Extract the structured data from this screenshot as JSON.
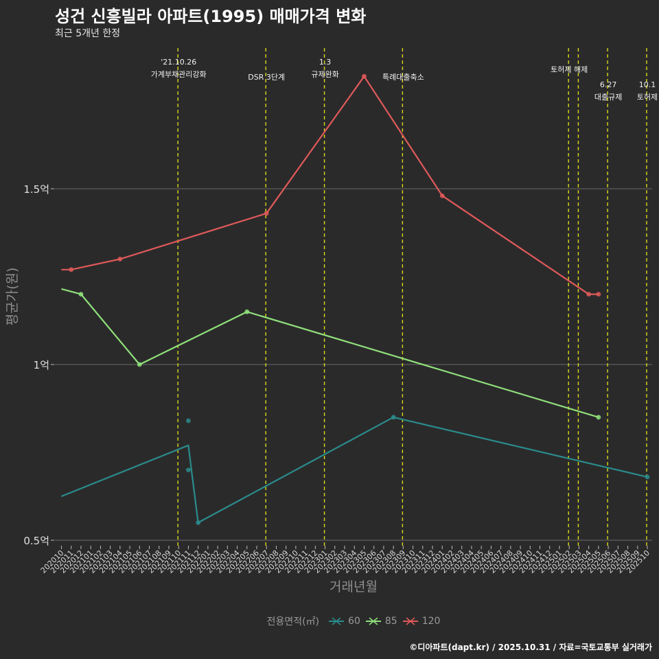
{
  "title": "성건 신흥빌라 아파트(1995) 매매가격 변화",
  "subtitle": "최근 5개년 한정",
  "caption": "©디아파트(dapt.kr) / 2025.10.31 / 자료=국토교통부 실거래가",
  "chart_data": {
    "type": "line",
    "title": "성건 신흥빌라 아파트(1995) 매매가격 변화",
    "subtitle": "최근 5개년 한정",
    "xlabel": "거래년월",
    "ylabel": "평균가(원)",
    "ylim": [
      0.5,
      1.8
    ],
    "yticks": [
      {
        "value": 0.5,
        "label": "0.5억"
      },
      {
        "value": 1.0,
        "label": "1억"
      },
      {
        "value": 1.5,
        "label": "1.5억"
      }
    ],
    "grid": true,
    "categories": [
      "202010",
      "202011",
      "202012",
      "202101",
      "202102",
      "202103",
      "202104",
      "202105",
      "202106",
      "202107",
      "202108",
      "202109",
      "202110",
      "202111",
      "202112",
      "202201",
      "202202",
      "202203",
      "202204",
      "202205",
      "202206",
      "202207",
      "202208",
      "202209",
      "202210",
      "202211",
      "202212",
      "202301",
      "202302",
      "202303",
      "202304",
      "202305",
      "202306",
      "202307",
      "202308",
      "202309",
      "202310",
      "202311",
      "202312",
      "202401",
      "202402",
      "202403",
      "202404",
      "202405",
      "202406",
      "202407",
      "202408",
      "202409",
      "202410",
      "202411",
      "202412",
      "202501",
      "202502",
      "202503",
      "202504",
      "202505",
      "202506",
      "202507",
      "202508",
      "202509",
      "202510"
    ],
    "legend": {
      "title": "전용면적(㎡)",
      "position": "bottom",
      "items": [
        {
          "label": "60",
          "color": "#2a8c8c"
        },
        {
          "label": "85",
          "color": "#8fe07a"
        },
        {
          "label": "120",
          "color": "#e05a5a"
        }
      ]
    },
    "series": [
      {
        "name": "60",
        "color": "#2a8c8c",
        "line": [
          {
            "x": 0,
            "y": 0.625
          },
          {
            "x": 13.0,
            "y": 0.77
          },
          {
            "x": 14.0,
            "y": 0.55
          },
          {
            "x": 34.0,
            "y": 0.85
          },
          {
            "x": 60.0,
            "y": 0.68
          }
        ],
        "points": [
          {
            "x": 13.0,
            "y": 0.84
          },
          {
            "x": 13.0,
            "y": 0.7
          },
          {
            "x": 14.0,
            "y": 0.55
          },
          {
            "x": 34.0,
            "y": 0.85
          },
          {
            "x": 60.0,
            "y": 0.68
          }
        ]
      },
      {
        "name": "85",
        "color": "#8fe07a",
        "line": [
          {
            "x": 0,
            "y": 1.215
          },
          {
            "x": 2.0,
            "y": 1.2
          },
          {
            "x": 8.0,
            "y": 1.0
          },
          {
            "x": 19.0,
            "y": 1.15
          },
          {
            "x": 55.0,
            "y": 0.85
          }
        ],
        "points": [
          {
            "x": 2.0,
            "y": 1.2
          },
          {
            "x": 8.0,
            "y": 1.0
          },
          {
            "x": 19.0,
            "y": 1.15
          },
          {
            "x": 55.0,
            "y": 0.85
          }
        ]
      },
      {
        "name": "120",
        "color": "#e05a5a",
        "line": [
          {
            "x": 0,
            "y": 1.27
          },
          {
            "x": 1.0,
            "y": 1.27
          },
          {
            "x": 6.0,
            "y": 1.3
          },
          {
            "x": 21.0,
            "y": 1.43
          },
          {
            "x": 31.0,
            "y": 1.82
          },
          {
            "x": 39.0,
            "y": 1.48
          },
          {
            "x": 54.0,
            "y": 1.2
          },
          {
            "x": 55.0,
            "y": 1.2
          }
        ],
        "points": [
          {
            "x": 1.0,
            "y": 1.27
          },
          {
            "x": 6.0,
            "y": 1.3
          },
          {
            "x": 21.0,
            "y": 1.43
          },
          {
            "x": 31.0,
            "y": 1.82
          },
          {
            "x": 39.0,
            "y": 1.48
          },
          {
            "x": 54.0,
            "y": 1.2
          },
          {
            "x": 55.0,
            "y": 1.2
          }
        ]
      }
    ],
    "events": [
      {
        "x": 12.0,
        "lines": [
          "'21.10.26",
          "가계부채관리강화"
        ],
        "tier": 0
      },
      {
        "x": 21.0,
        "lines": [
          "DSR 3단계"
        ],
        "tier": 1
      },
      {
        "x": 27.0,
        "lines": [
          "1.3",
          "규제완화"
        ],
        "tier": 0
      },
      {
        "x": 35.0,
        "lines": [
          "특례대출축소"
        ],
        "tier": 1
      },
      {
        "x": 52.0,
        "lines": [
          "토허제 해제"
        ],
        "tier": 0.5
      },
      {
        "x": 53.0,
        "lines": [],
        "tier": 0
      },
      {
        "x": 56.0,
        "lines": [
          "6.27",
          "대출규제"
        ],
        "tier": 1.5
      },
      {
        "x": 60.0,
        "lines": [
          "10.1",
          "토허제"
        ],
        "tier": 1.5
      }
    ]
  }
}
